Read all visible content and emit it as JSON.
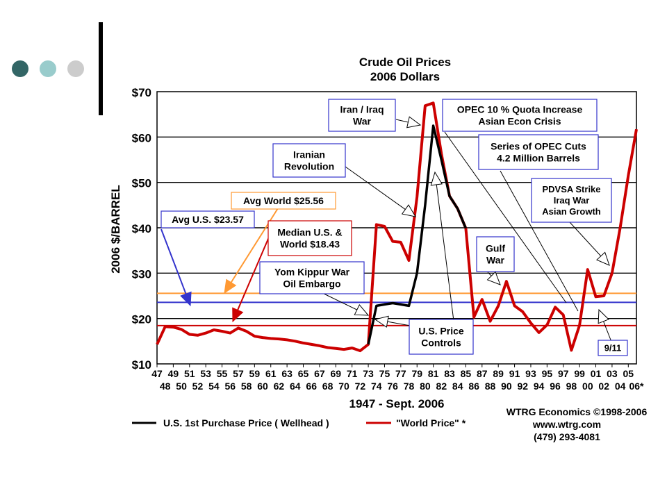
{
  "slide": {
    "dots": [
      {
        "name": "dark-teal-dot",
        "color": "#336666"
      },
      {
        "name": "light-teal-dot",
        "color": "#99CCCC"
      },
      {
        "name": "gray-dot",
        "color": "#CCCCCC"
      }
    ]
  },
  "chart_data": {
    "type": "line",
    "title": "Crude Oil Prices",
    "subtitle": "2006 Dollars",
    "ylabel": "2006 $/BARREL",
    "xlabel": "1947 - Sept. 2006",
    "ylim": [
      10,
      70
    ],
    "xlim": [
      1947,
      2006
    ],
    "y_ticks": [
      "$10",
      "$20",
      "$30",
      "$40",
      "$50",
      "$60",
      "$70"
    ],
    "y_tick_values": [
      10,
      20,
      30,
      40,
      50,
      60,
      70
    ],
    "x_ticks_top": [
      "47",
      "49",
      "51",
      "53",
      "55",
      "57",
      "59",
      "61",
      "63",
      "65",
      "67",
      "69",
      "71",
      "73",
      "75",
      "77",
      "79",
      "81",
      "83",
      "85",
      "87",
      "89",
      "91",
      "93",
      "95",
      "97",
      "99",
      "01",
      "03",
      "05"
    ],
    "x_ticks_bottom": [
      "48",
      "50",
      "52",
      "54",
      "56",
      "58",
      "60",
      "62",
      "64",
      "66",
      "68",
      "70",
      "72",
      "74",
      "76",
      "78",
      "80",
      "82",
      "84",
      "86",
      "88",
      "90",
      "92",
      "94",
      "96",
      "98",
      "00",
      "02",
      "04",
      "06*"
    ],
    "grid": true,
    "series": [
      {
        "name": "\"World Price\" *",
        "color": "#CC0000",
        "x": [
          1947,
          1948,
          1949,
          1950,
          1951,
          1952,
          1953,
          1954,
          1955,
          1956,
          1957,
          1958,
          1959,
          1960,
          1961,
          1962,
          1963,
          1964,
          1965,
          1966,
          1967,
          1968,
          1969,
          1970,
          1971,
          1972,
          1973,
          1974,
          1975,
          1976,
          1977,
          1978,
          1979,
          1980,
          1981,
          1982,
          1983,
          1984,
          1985,
          1986,
          1987,
          1988,
          1989,
          1990,
          1991,
          1992,
          1993,
          1994,
          1995,
          1996,
          1997,
          1998,
          1999,
          2000,
          2001,
          2002,
          2003,
          2004,
          2005,
          2006
        ],
        "values": [
          14.3,
          18.2,
          18.1,
          17.6,
          16.5,
          16.3,
          16.8,
          17.5,
          17.2,
          16.8,
          17.9,
          17.2,
          16.1,
          15.8,
          15.6,
          15.5,
          15.3,
          15.0,
          14.6,
          14.3,
          14.0,
          13.6,
          13.4,
          13.2,
          13.5,
          12.9,
          14.3,
          40.7,
          40.3,
          37.0,
          36.8,
          32.8,
          46.8,
          66.9,
          67.5,
          56.3,
          47.0,
          44.2,
          39.9,
          20.3,
          24.2,
          19.4,
          22.8,
          28.2,
          22.8,
          21.5,
          19.0,
          16.9,
          18.6,
          22.5,
          20.8,
          13.0,
          18.5,
          30.8,
          24.8,
          25.0,
          30.0,
          40.0,
          51.5,
          61.7
        ]
      },
      {
        "name": "U.S. 1st Purchase Price ( Wellhead )",
        "color": "#000000",
        "x": [
          1973,
          1974,
          1975,
          1976,
          1977,
          1978,
          1979,
          1980,
          1981,
          1982,
          1983,
          1984,
          1985
        ],
        "values": [
          14.3,
          22.8,
          23.1,
          23.4,
          23.1,
          22.8,
          30.0,
          45.0,
          62.5,
          55.0,
          47.0,
          44.2,
          39.9
        ]
      }
    ],
    "reference_lines": [
      {
        "label": "Avg World $25.56",
        "value": 25.56,
        "color": "#FF9933"
      },
      {
        "label": "Avg U.S. $23.57",
        "value": 23.57,
        "color": "#3333CC"
      },
      {
        "label": "Median U.S. & World  $18.43",
        "value": 18.43,
        "color": "#CC0000"
      }
    ],
    "annotations": [
      {
        "lines": [
          "Iran / Iraq",
          "War"
        ]
      },
      {
        "lines": [
          "OPEC 10 % Quota Increase",
          "Asian Econ Crisis"
        ]
      },
      {
        "lines": [
          "Iranian",
          "Revolution"
        ]
      },
      {
        "lines": [
          "Series of OPEC Cuts",
          "4.2 Million Barrels"
        ]
      },
      {
        "lines": [
          "PDVSA Strike",
          "Iraq War",
          "Asian Growth"
        ]
      },
      {
        "lines": [
          "Avg World $25.56"
        ]
      },
      {
        "lines": [
          "Avg U.S. $23.57"
        ]
      },
      {
        "lines": [
          "Median U.S. &",
          "World  $18.43"
        ]
      },
      {
        "lines": [
          "Gulf",
          "War"
        ]
      },
      {
        "lines": [
          "Yom Kippur War",
          "Oil Embargo"
        ]
      },
      {
        "lines": [
          "U.S. Price",
          "Controls"
        ]
      },
      {
        "lines": [
          "9/11"
        ]
      }
    ],
    "credit": [
      "WTRG Economics  ©1998-2006",
      "www.wtrg.com",
      "(479) 293-4081"
    ]
  }
}
